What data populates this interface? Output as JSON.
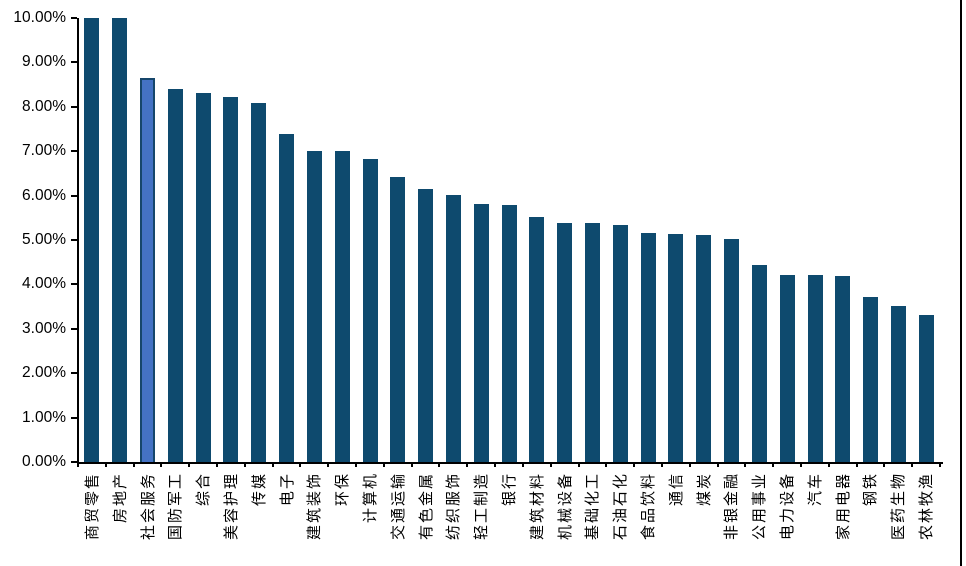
{
  "chart_data": {
    "type": "bar",
    "title": "",
    "xlabel": "",
    "ylabel": "",
    "ylim": [
      0,
      10
    ],
    "grid": "off",
    "legend": "none",
    "y_tick_labels": [
      "10.00%",
      "9.00%",
      "8.00%",
      "7.00%",
      "6.00%",
      "5.00%",
      "4.00%",
      "3.00%",
      "2.00%",
      "1.00%",
      "0.00%"
    ],
    "categories": [
      "商贸零售",
      "房地产",
      "社会服务",
      "国防军工",
      "综合",
      "美容护理",
      "传媒",
      "电子",
      "建筑装饰",
      "环保",
      "计算机",
      "交通运输",
      "有色金属",
      "纺织服饰",
      "轻工制造",
      "银行",
      "建筑材料",
      "机械设备",
      "基础化工",
      "石油石化",
      "食品饮料",
      "通信",
      "煤炭",
      "非银金融",
      "公用事业",
      "电力设备",
      "汽车",
      "家用电器",
      "钢铁",
      "医药生物",
      "农林牧渔"
    ],
    "values": [
      10.0,
      10.0,
      8.65,
      8.4,
      8.3,
      8.22,
      8.09,
      7.38,
      7.0,
      7.0,
      6.82,
      6.41,
      6.16,
      6.02,
      5.8,
      5.79,
      5.52,
      5.39,
      5.38,
      5.33,
      5.16,
      5.14,
      5.11,
      5.02,
      4.43,
      4.22,
      4.21,
      4.19,
      3.71,
      3.52,
      3.3
    ],
    "highlight_index": 2,
    "highlight_category": "社会服务",
    "colors": {
      "bar_fill": "#0E4A6E",
      "highlight_fill": "#4472C4",
      "highlight_border": "#16466B",
      "axis": "#000000"
    }
  }
}
